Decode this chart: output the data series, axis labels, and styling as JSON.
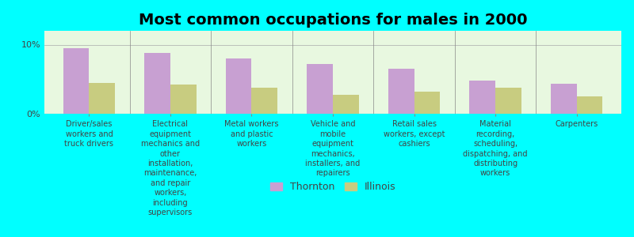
{
  "title": "Most common occupations for males in 2000",
  "categories": [
    "Driver/sales\nworkers and\ntruck drivers",
    "Electrical\nequipment\nmechanics and\nother\ninstallation,\nmechanics and\nother\ninstallation,\nmaintenance,\nand repair\nworkers,\nincluding\nsupervisors",
    "Metal workers\nand plastic\nworkers",
    "Vehicle and\nmobile\nequipment\nmechanics,\ninstallers, and\nrepairers",
    "Retail sales\nworkers, except\ncashiers",
    "Material\nrecording,\nscheduling,\ndispatching, and\ndistributing\nworkers",
    "Carpenters"
  ],
  "categories_display": [
    "Driver/sales\nworkers and\ntruck drivers",
    "Electrical\nequipment\nmechanics and\nother\ninstallation,\nmaintenance,\nand repair\nworkers,\nincluding\nsupervisors",
    "Metal workers\nand plastic\nworkers",
    "Vehicle and\nmobile\nequipment\nmechanics,\ninstallers, and\nrepairers",
    "Retail sales\nworkers, except\ncashiers",
    "Material\nrecording,\nscheduling,\ndispatching, and\ndistributing\nworkers",
    "Carpenters"
  ],
  "thornton_values": [
    9.5,
    8.8,
    8.0,
    7.2,
    6.5,
    4.8,
    4.3
  ],
  "illinois_values": [
    4.5,
    4.2,
    3.8,
    2.8,
    3.2,
    3.8,
    2.5
  ],
  "thornton_color": "#c8a0d2",
  "illinois_color": "#c8cc80",
  "background_color": "#00ffff",
  "plot_bg_start": "#f0ffdd",
  "plot_bg_end": "#d8f8d8",
  "ylim": [
    0,
    12
  ],
  "ytick_vals": [
    0,
    10
  ],
  "ytick_labels": [
    "0%",
    "10%"
  ],
  "bar_width": 0.32,
  "legend_thornton": "Thornton",
  "legend_illinois": "Illinois",
  "title_fontsize": 14,
  "label_fontsize": 7.0
}
